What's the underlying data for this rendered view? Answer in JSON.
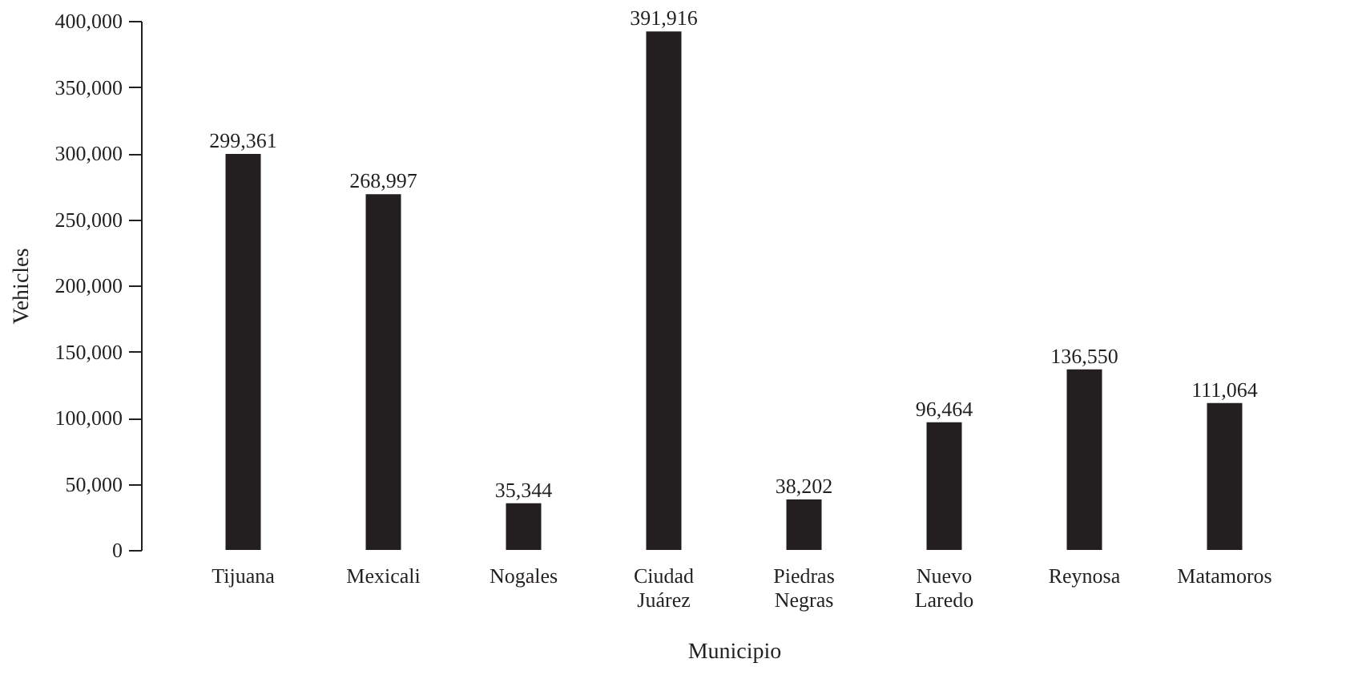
{
  "chart_data": {
    "type": "bar",
    "xlabel": "Municipio",
    "ylabel": "Vehicles",
    "categories": [
      "Tijuana",
      "Mexicali",
      "Nogales",
      "Ciudad Juárez",
      "Piedras Negras",
      "Nuevo Laredo",
      "Reynosa",
      "Matamoros"
    ],
    "values": [
      299361,
      268997,
      35344,
      391916,
      38202,
      96464,
      136550,
      111064
    ],
    "value_labels": [
      "299,361",
      "268,997",
      "35,344",
      "391,916",
      "38,202",
      "96,464",
      "136,550",
      "111,064"
    ],
    "color": "#231f20",
    "ylim": [
      0,
      400000
    ],
    "yticks": [
      0,
      {
        "value": 50000,
        "label": "50,000"
      },
      {
        "value": 100000,
        "label": "100,000"
      },
      {
        "value": 150000,
        "label": "150,000"
      },
      {
        "value": 200000,
        "label": "200,000"
      },
      {
        "value": 250000,
        "label": "250,000"
      },
      {
        "value": 300000,
        "label": "300,000"
      },
      {
        "value": 350000,
        "label": "350,000"
      },
      {
        "value": 400000,
        "label": "400,000"
      }
    ]
  }
}
